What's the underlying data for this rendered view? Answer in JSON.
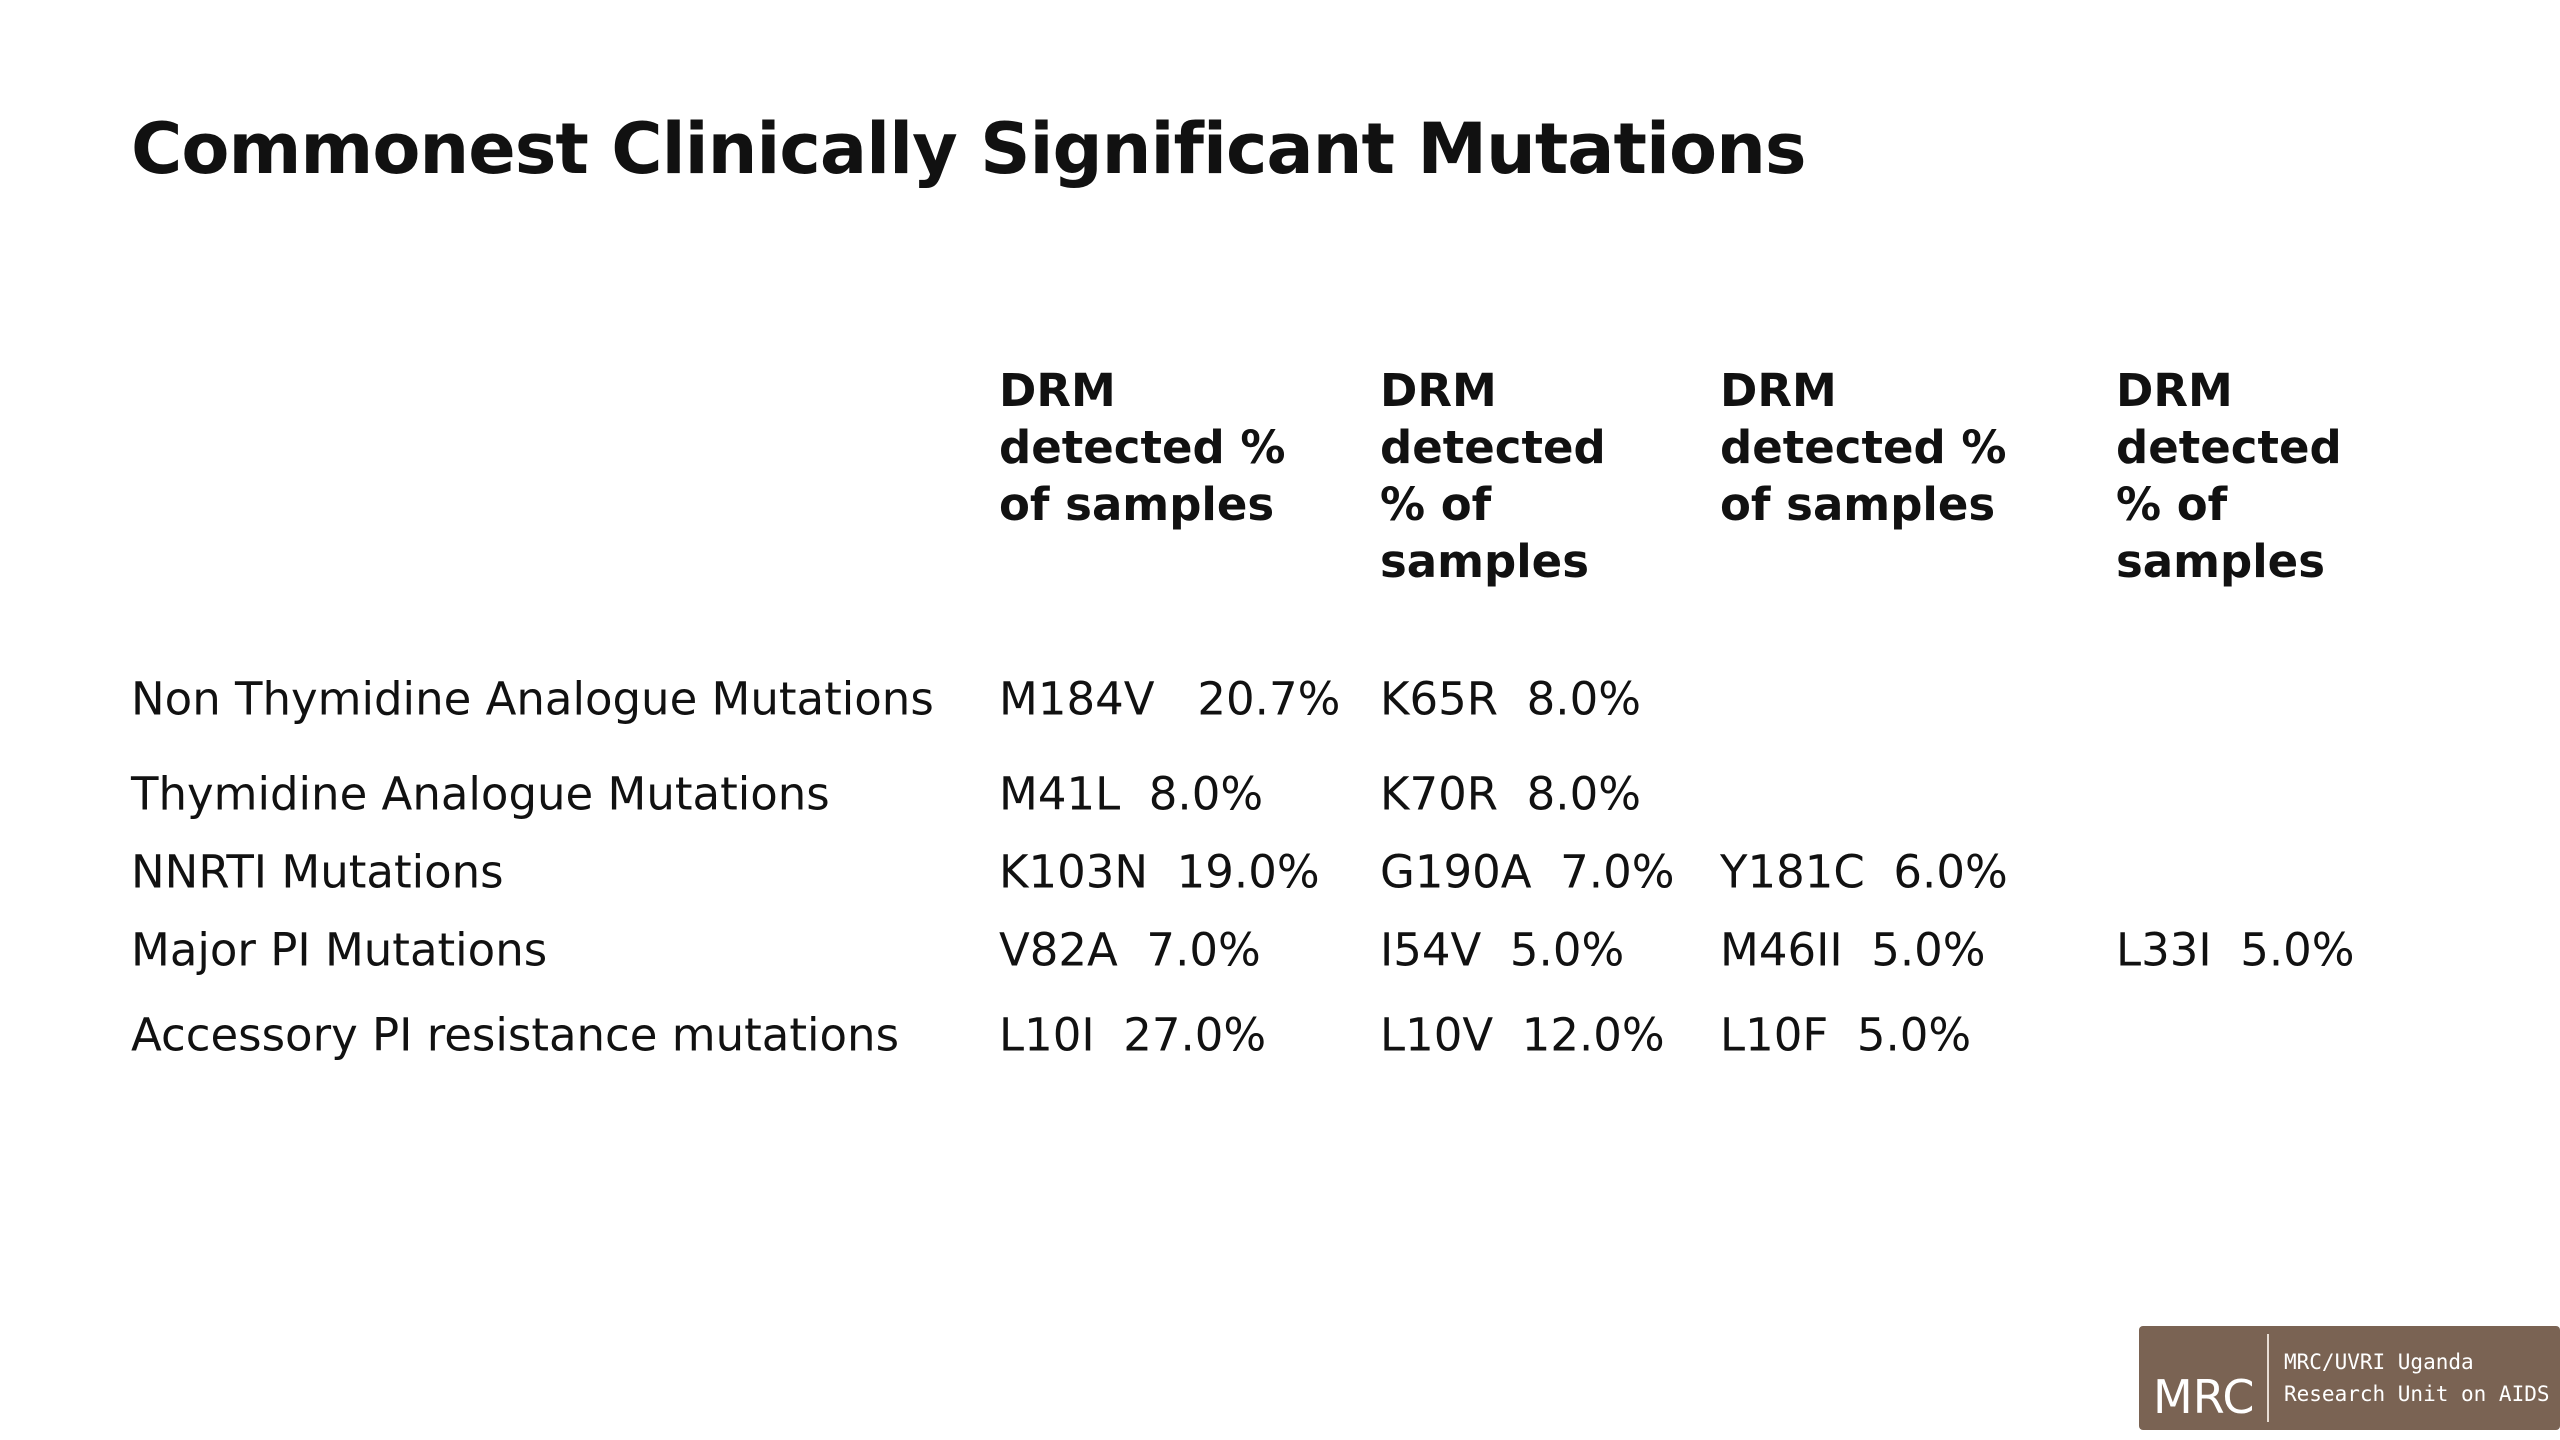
{
  "title": "Commonest Clinically Significant Mutations",
  "table": {
    "header": [
      "DRM detected % of samples",
      "DRM detected % of samples",
      "DRM detected % of samples",
      "DRM detected % of samples"
    ],
    "rows": [
      {
        "label": "Non Thymidine Analogue Mutations",
        "cells": [
          "M184V   20.7%",
          "K65R  8.0%"
        ]
      },
      {
        "label": "Thymidine Analogue Mutations",
        "cells": [
          "M41L  8.0%",
          "K70R  8.0%"
        ]
      },
      {
        "label": "NNRTI Mutations",
        "cells": [
          "K103N  19.0%",
          "G190A  7.0%",
          "Y181C  6.0%"
        ]
      },
      {
        "label": "Major PI Mutations",
        "cells": [
          "V82A  7.0%",
          "I54V  5.0%",
          "M46II  5.0%",
          "L33I  5.0%"
        ]
      },
      {
        "label": "Accessory PI resistance mutations",
        "cells": [
          "L10I  27.0%",
          "L10V  12.0%",
          "L10F  5.0%"
        ]
      }
    ]
  },
  "logo": {
    "mark": "MRC",
    "line1": "MRC/UVRI Uganda",
    "line2": "Research Unit on AIDS"
  }
}
